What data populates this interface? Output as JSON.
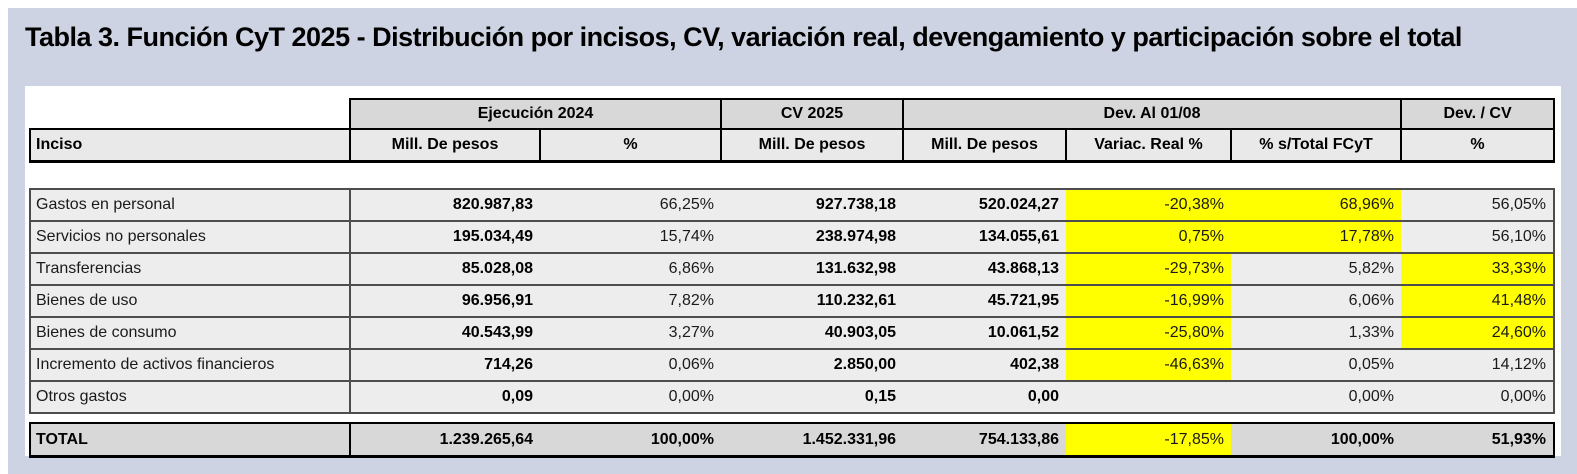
{
  "title": "Tabla 3. Función CyT 2025 - Distribución por incisos, CV, variación real, devengamiento y participación sobre el total",
  "colors": {
    "highlight": "#ffff00",
    "frame_bg": "#cdd3e2",
    "header_bg": "#d8d8d8",
    "colhdr_bg": "#e9e9e9",
    "row_bg": "#ededed",
    "total_bg": "#d8d8d8"
  },
  "table": {
    "groups": {
      "ejecucion": "Ejecución 2024",
      "cv": "CV 2025",
      "dev": "Dev. Al 01/08",
      "dev_cv": "Dev. / CV"
    },
    "columns": {
      "inciso": "Inciso",
      "ejec_mill": "Mill. De pesos",
      "ejec_pct": "%",
      "cv_mill": "Mill. De pesos",
      "dev_mill": "Mill. De pesos",
      "variac": "Variac. Real %",
      "s_total": "% s/Total FCyT",
      "dev_cv_pct": "%"
    },
    "rows": [
      {
        "label": "Gastos en personal",
        "values": [
          "820.987,83",
          "66,25%",
          "927.738,18",
          "520.024,27",
          "-20,38%",
          "68,96%",
          "56,05%"
        ],
        "highlight": [
          false,
          false,
          false,
          false,
          true,
          true,
          false
        ]
      },
      {
        "label": "Servicios no personales",
        "values": [
          "195.034,49",
          "15,74%",
          "238.974,98",
          "134.055,61",
          "0,75%",
          "17,78%",
          "56,10%"
        ],
        "highlight": [
          false,
          false,
          false,
          false,
          true,
          true,
          false
        ]
      },
      {
        "label": "Transferencias",
        "values": [
          "85.028,08",
          "6,86%",
          "131.632,98",
          "43.868,13",
          "-29,73%",
          "5,82%",
          "33,33%"
        ],
        "highlight": [
          false,
          false,
          false,
          false,
          true,
          false,
          true
        ]
      },
      {
        "label": "Bienes de uso",
        "values": [
          "96.956,91",
          "7,82%",
          "110.232,61",
          "45.721,95",
          "-16,99%",
          "6,06%",
          "41,48%"
        ],
        "highlight": [
          false,
          false,
          false,
          false,
          true,
          false,
          true
        ]
      },
      {
        "label": "Bienes de consumo",
        "values": [
          "40.543,99",
          "3,27%",
          "40.903,05",
          "10.061,52",
          "-25,80%",
          "1,33%",
          "24,60%"
        ],
        "highlight": [
          false,
          false,
          false,
          false,
          true,
          false,
          true
        ]
      },
      {
        "label": "Incremento de activos financieros",
        "values": [
          "714,26",
          "0,06%",
          "2.850,00",
          "402,38",
          "-46,63%",
          "0,05%",
          "14,12%"
        ],
        "highlight": [
          false,
          false,
          false,
          false,
          true,
          false,
          false
        ]
      },
      {
        "label": "Otros gastos",
        "values": [
          "0,09",
          "0,00%",
          "0,15",
          "0,00",
          "",
          "0,00%",
          "0,00%"
        ],
        "highlight": [
          false,
          false,
          false,
          false,
          false,
          false,
          false
        ]
      }
    ],
    "total": {
      "label": "TOTAL",
      "values": [
        "1.239.265,64",
        "100,00%",
        "1.452.331,96",
        "754.133,86",
        "-17,85%",
        "100,00%",
        "51,93%"
      ],
      "highlight": [
        false,
        false,
        false,
        false,
        true,
        false,
        false
      ]
    }
  }
}
